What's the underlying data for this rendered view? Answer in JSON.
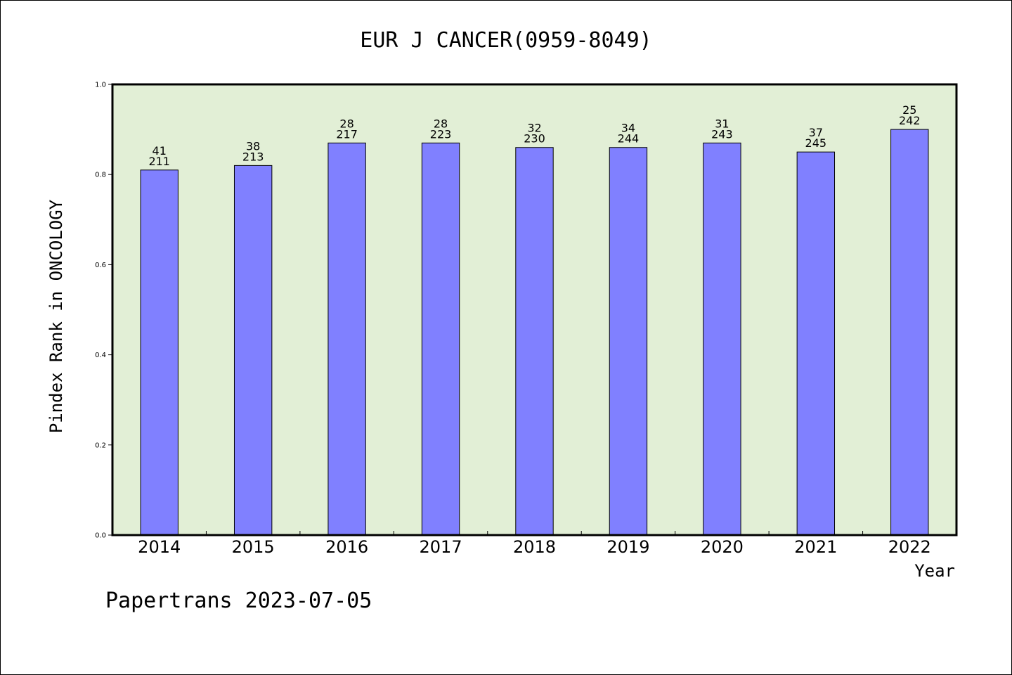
{
  "chart_data": {
    "type": "bar",
    "title": "EUR J CANCER(0959-8049)",
    "xlabel": "Year",
    "ylabel": "Pindex Rank in ONCOLOGY",
    "ylim": [
      0,
      1.0
    ],
    "yticks": [
      "0.0",
      "0.2",
      "0.4",
      "0.6",
      "0.8",
      "1.0"
    ],
    "categories": [
      "2014",
      "2015",
      "2016",
      "2017",
      "2018",
      "2019",
      "2020",
      "2021",
      "2022"
    ],
    "values": [
      0.81,
      0.82,
      0.87,
      0.87,
      0.86,
      0.86,
      0.87,
      0.85,
      0.9
    ],
    "rank_labels": [
      "41",
      "38",
      "28",
      "28",
      "32",
      "34",
      "31",
      "37",
      "25"
    ],
    "total_labels": [
      "211",
      "213",
      "217",
      "223",
      "230",
      "244",
      "243",
      "245",
      "242"
    ],
    "grid": false,
    "colors": {
      "plot_background": "#e2efd6",
      "bar_fill": "#8080ff",
      "bar_stroke": "#000000"
    }
  },
  "footer": {
    "text": "Papertrans 2023-07-05"
  }
}
